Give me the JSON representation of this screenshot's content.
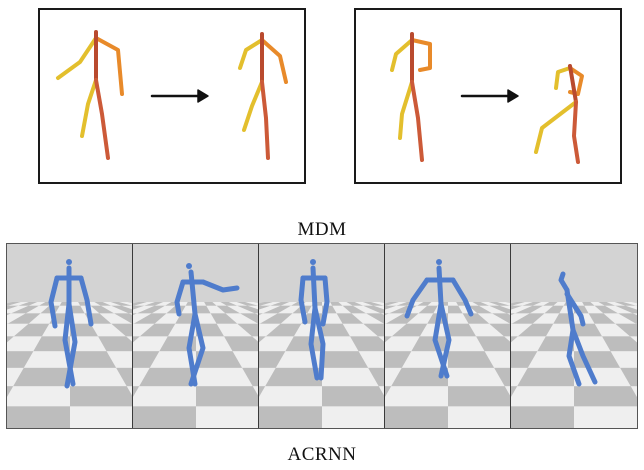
{
  "captions": {
    "top": "MDM",
    "bottom": "ACRNN"
  },
  "colors": {
    "limb_yellow": "#e3bf2d",
    "limb_orange": "#e88a2a",
    "limb_red": "#cc5a38",
    "spine_brown": "#b94a2e",
    "arrow": "#111111",
    "skeleton_blue": "#4f7ccc",
    "floor_light": "#efefef",
    "floor_dark": "#bdbdbd",
    "sky": "#d3d3d3"
  },
  "icons": [
    "arrow-right-icon"
  ]
}
